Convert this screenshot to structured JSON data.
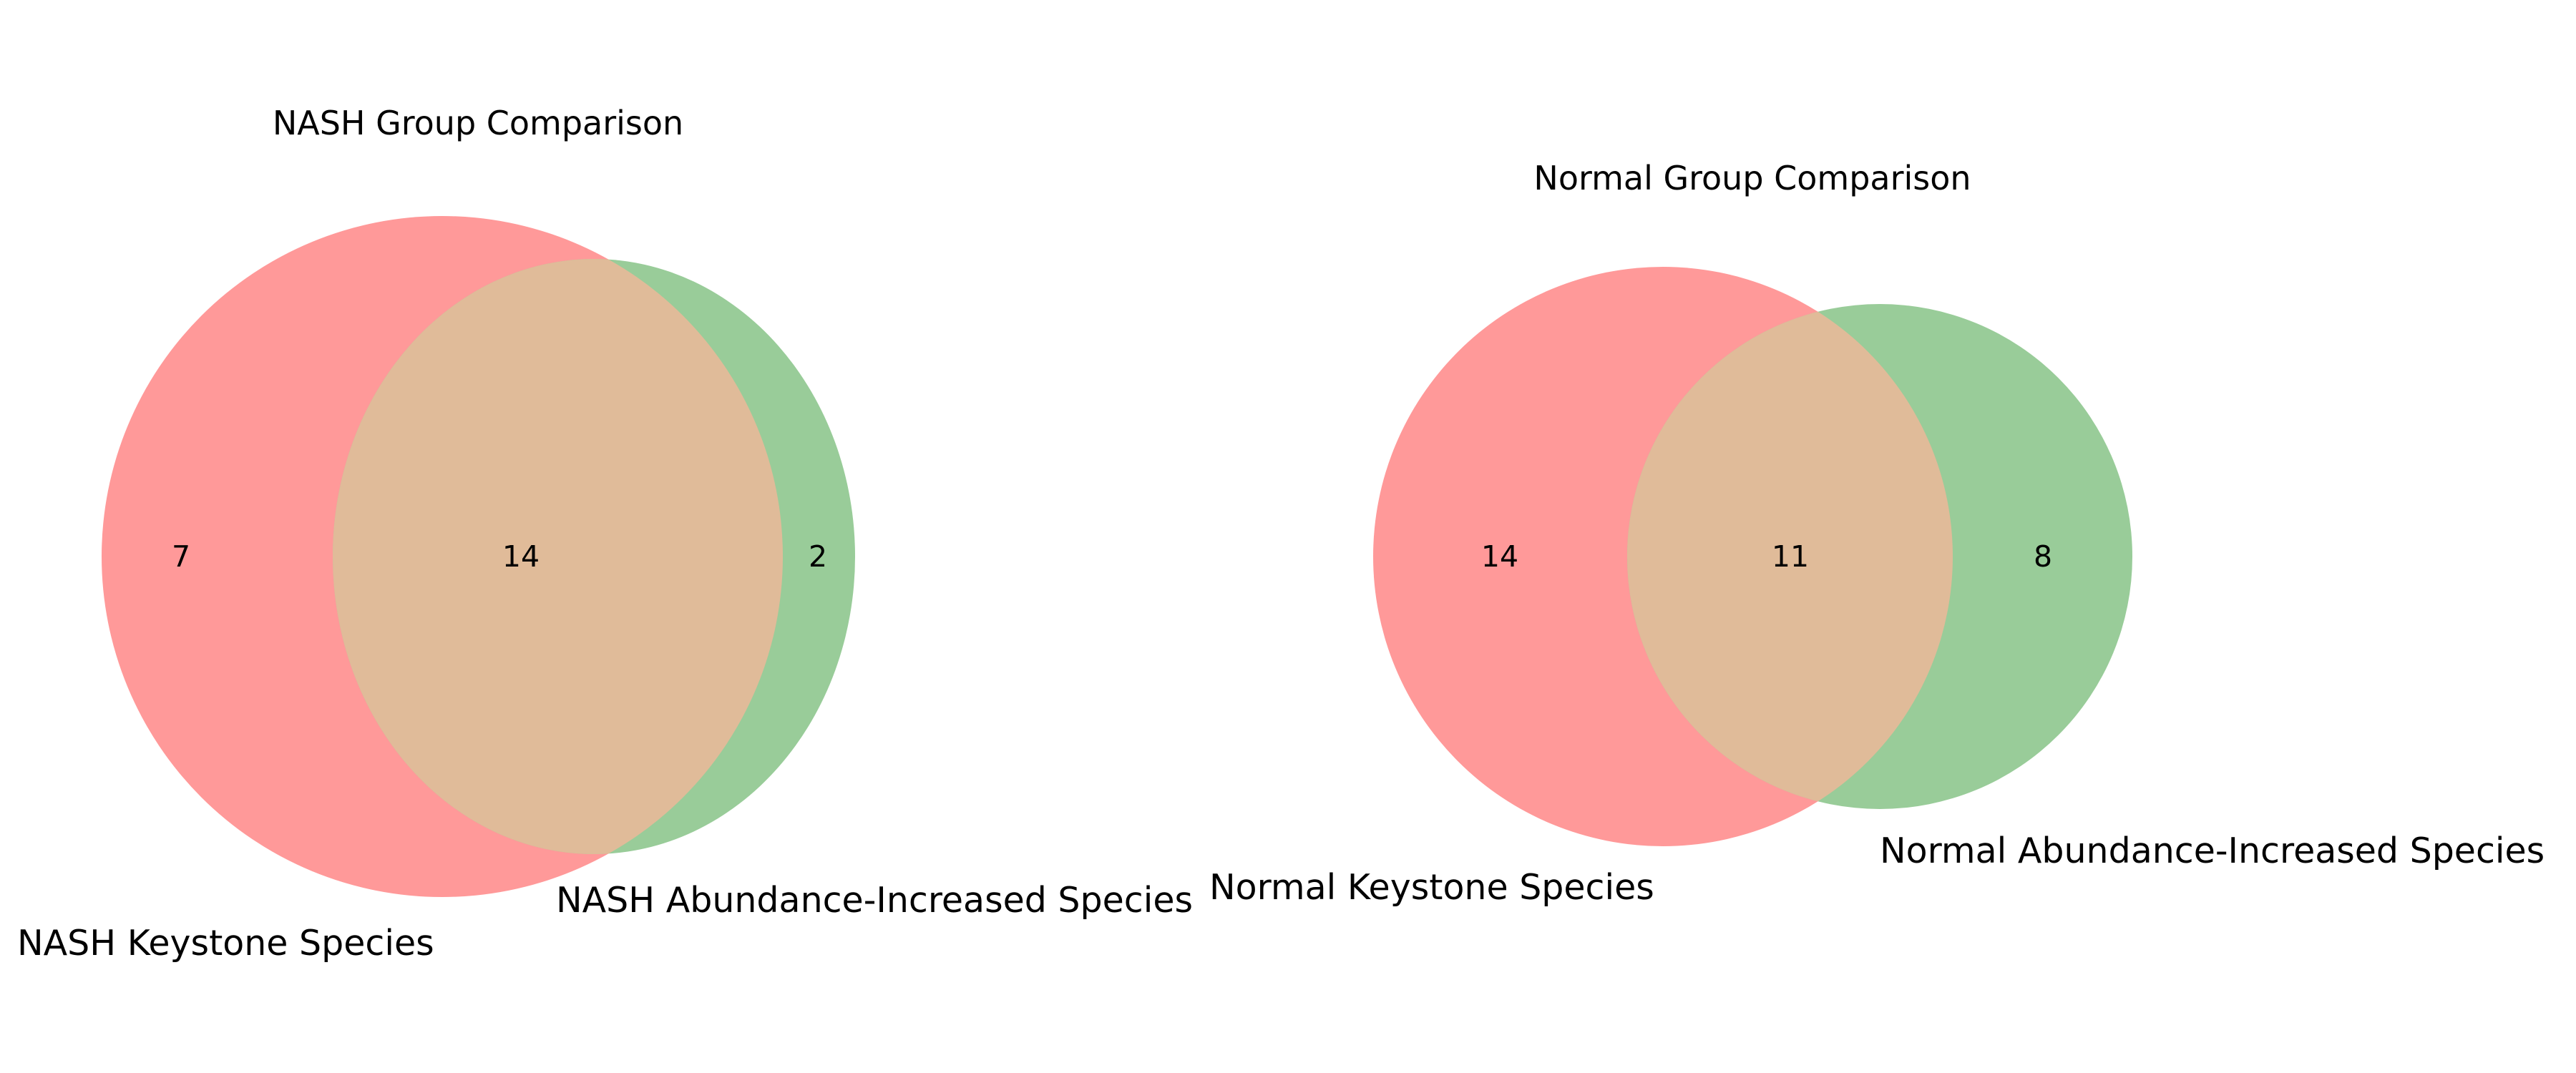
{
  "chart_data": [
    {
      "type": "venn",
      "title": "NASH Group Comparison",
      "sets": [
        {
          "name": "NASH Keystone Species",
          "color": "#ff9999"
        },
        {
          "name": "NASH Abundance-Increased Species",
          "color": "#99cc99"
        }
      ],
      "overlap_color": "#e0bb99",
      "regions": {
        "only_a": "7",
        "both": "14",
        "only_b": "2"
      }
    },
    {
      "type": "venn",
      "title": "Normal Group Comparison",
      "sets": [
        {
          "name": "Normal Keystone Species",
          "color": "#ff9999"
        },
        {
          "name": "Normal Abundance-Increased Species",
          "color": "#99cc99"
        }
      ],
      "overlap_color": "#e0bb99",
      "regions": {
        "only_a": "14",
        "both": "11",
        "only_b": "8"
      }
    }
  ]
}
